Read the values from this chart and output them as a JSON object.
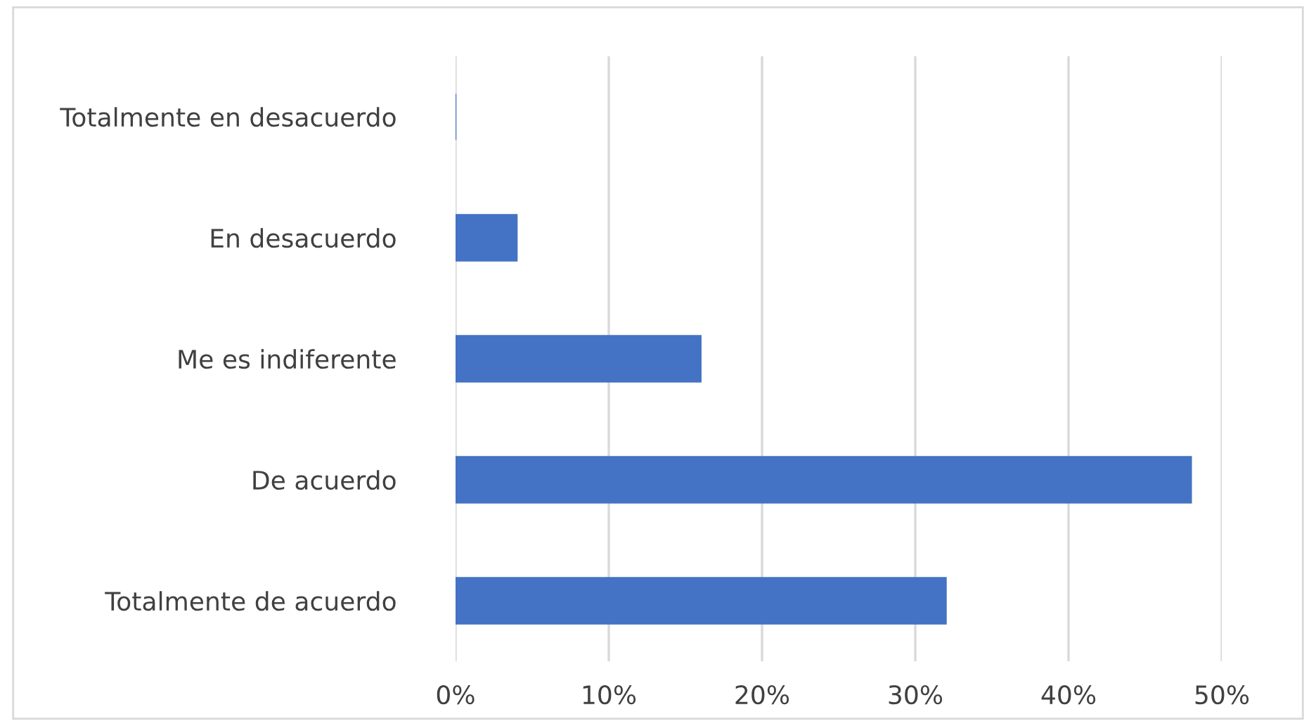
{
  "chart_data": {
    "type": "bar",
    "orientation": "horizontal",
    "categories": [
      "Totalmente en desacuerdo",
      "En desacuerdo",
      "Me es indiferente",
      "De acuerdo",
      "Totalmente de acuerdo"
    ],
    "values": [
      0,
      4,
      16,
      48,
      32
    ],
    "color": "#4472c4",
    "xlim": [
      0,
      50
    ],
    "xticks": [
      {
        "value": 0,
        "label": "0%"
      },
      {
        "value": 10,
        "label": "10%"
      },
      {
        "value": 20,
        "label": "20%"
      },
      {
        "value": 30,
        "label": "30%"
      },
      {
        "value": 40,
        "label": "40%"
      },
      {
        "value": 50,
        "label": "50%"
      }
    ],
    "grid": "x",
    "legend": false
  }
}
